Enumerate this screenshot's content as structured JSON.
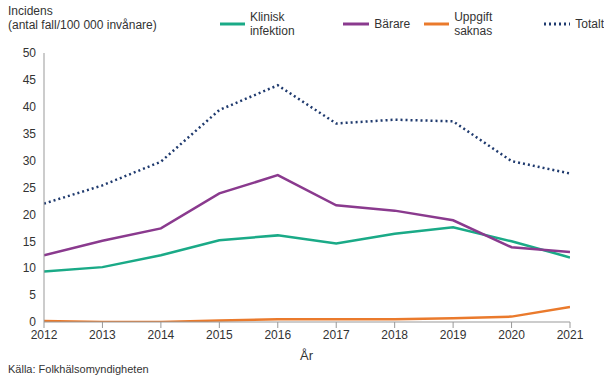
{
  "chart_data": {
    "type": "line",
    "y_label": "Incidens\n(antal fall/100 000 invånare)",
    "x_label": "År",
    "source": "Källa: Folkhälsomyndigheten",
    "x": [
      2012,
      2013,
      2014,
      2015,
      2016,
      2017,
      2018,
      2019,
      2020,
      2021
    ],
    "series": [
      {
        "name": "Klinisk infektion",
        "color": "#1aaa87",
        "line_style": "solid",
        "values": [
          9.4,
          10.2,
          12.4,
          15.2,
          16.1,
          14.6,
          16.4,
          17.6,
          15.0,
          12.0
        ]
      },
      {
        "name": "Bärare",
        "color": "#8a3a8e",
        "line_style": "solid",
        "values": [
          12.4,
          15.1,
          17.4,
          23.9,
          27.3,
          21.7,
          20.7,
          18.9,
          13.9,
          13.0
        ]
      },
      {
        "name": "Uppgift saknas",
        "color": "#ea7a2c",
        "line_style": "solid",
        "values": [
          0.2,
          0.0,
          0.0,
          0.3,
          0.5,
          0.5,
          0.5,
          0.7,
          1.0,
          2.8
        ]
      },
      {
        "name": "Totalt",
        "color": "#1f3a6e",
        "line_style": "dotted",
        "values": [
          22.0,
          25.4,
          29.8,
          39.4,
          44.0,
          36.9,
          37.6,
          37.3,
          29.9,
          27.6
        ]
      }
    ],
    "xlim": [
      2012,
      2021
    ],
    "xticks": [
      2012,
      2013,
      2014,
      2015,
      2016,
      2017,
      2018,
      2019,
      2020,
      2021
    ],
    "ylim": [
      0,
      50
    ],
    "yticks": [
      0,
      5,
      10,
      15,
      20,
      25,
      30,
      35,
      40,
      45,
      50
    ],
    "grid": false,
    "legend": "top"
  }
}
